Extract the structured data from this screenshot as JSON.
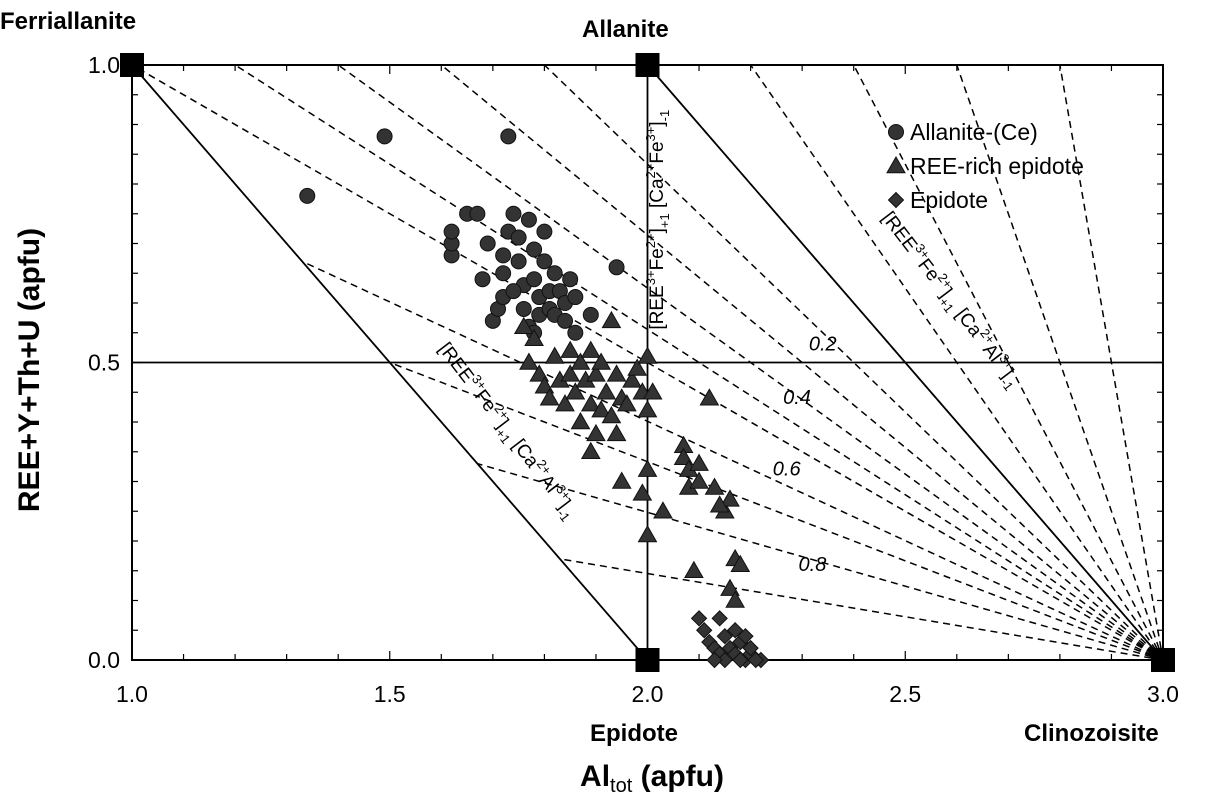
{
  "labels": {
    "ylabel": "REE+Y+Th+U (apfu)",
    "xlabel_main": "Al",
    "xlabel_sub": "tot",
    "xlabel_unit": "(apfu)",
    "vertex_top_left": "Ferriallanite",
    "vertex_top_mid": "Allanite",
    "vertex_bottom_mid": "Epidote",
    "vertex_bottom_right": "Clinozoisite"
  },
  "chart_data": {
    "type": "scatter",
    "xlim": [
      1.0,
      3.0
    ],
    "ylim": [
      0.0,
      1.0
    ],
    "x_ticks": [
      "1.0",
      "1.5",
      "2.0",
      "2.5",
      "3.0"
    ],
    "y_ticks": [
      "0.0",
      "0.5",
      "1.0"
    ],
    "grid": false,
    "legend_position": "top-right",
    "legend": [
      {
        "name": "Allanite-(Ce)",
        "marker": "circle"
      },
      {
        "name": "REE-rich epidote",
        "marker": "triangle"
      },
      {
        "name": "Epidote",
        "marker": "diamond"
      }
    ],
    "end_members": [
      {
        "name": "Ferriallanite",
        "x": 1.0,
        "y": 1.0
      },
      {
        "name": "Allanite",
        "x": 2.0,
        "y": 1.0
      },
      {
        "name": "Epidote",
        "x": 2.0,
        "y": 0.0
      },
      {
        "name": "Clinozoisite",
        "x": 3.0,
        "y": 0.0
      }
    ],
    "reference_lines": [
      {
        "x1": 1.0,
        "y1": 1.0,
        "x2": 2.0,
        "y2": 0.0,
        "style": "solid"
      },
      {
        "x1": 2.0,
        "y1": 1.0,
        "x2": 3.0,
        "y2": 0.0,
        "style": "solid"
      },
      {
        "x1": 2.0,
        "y1": 1.0,
        "x2": 2.0,
        "y2": 0.0,
        "style": "solid"
      },
      {
        "x1": 1.0,
        "y1": 0.5,
        "x2": 3.0,
        "y2": 0.5,
        "style": "solid"
      }
    ],
    "fan_lines": {
      "origin": [
        3.0,
        0.0
      ],
      "targets": [
        [
          1.0,
          1.0
        ],
        [
          1.2,
          1.0
        ],
        [
          1.4,
          1.0
        ],
        [
          1.6,
          1.0
        ],
        [
          1.8,
          1.0
        ],
        [
          2.0,
          1.0
        ],
        [
          2.2,
          1.0
        ],
        [
          2.4,
          1.0
        ],
        [
          2.6,
          1.0
        ],
        [
          2.8,
          1.0
        ],
        [
          1.33,
          0.67
        ],
        [
          1.5,
          0.5
        ],
        [
          1.67,
          0.33
        ],
        [
          1.83,
          0.17
        ]
      ],
      "style": "dashed"
    },
    "line_labels": [
      {
        "text": "0.2",
        "x": 2.34,
        "y": 0.52
      },
      {
        "text": "0.4",
        "x": 2.29,
        "y": 0.43
      },
      {
        "text": "0.6",
        "x": 2.27,
        "y": 0.31
      },
      {
        "text": "0.8",
        "x": 2.32,
        "y": 0.15
      }
    ],
    "exchange_vectors": [
      {
        "pre": "[REE",
        "s1": "3+",
        "mid": "Fe",
        "s2": "2+",
        "mid2": "]",
        "s3": "+1",
        "mid3": " [Ca",
        "s4": "2+",
        "mid4": "Al",
        "s5": "3+",
        "end": "]",
        "s6": "-1"
      },
      {
        "pre": "[REE",
        "s1": "3+",
        "mid": "Fe",
        "s2": "2+",
        "mid2": "]",
        "s3": "+1",
        "mid3": " [Ca",
        "s4": "2+",
        "mid4": "Al",
        "s5": "3+",
        "end": "]",
        "s6": "-1"
      },
      {
        "pre": "[REE",
        "s1": "3+",
        "mid": "Fe",
        "s2": "2+",
        "mid2": "]",
        "s3": "+1",
        "mid3": " [Ca",
        "s4": "2+",
        "mid4": "Fe",
        "s5": "3+",
        "end": "]",
        "s6": "-1"
      }
    ],
    "series": [
      {
        "name": "Allanite-(Ce)",
        "marker": "circle",
        "points": [
          [
            1.34,
            0.78
          ],
          [
            1.49,
            0.88
          ],
          [
            1.73,
            0.88
          ],
          [
            1.62,
            0.68
          ],
          [
            1.62,
            0.7
          ],
          [
            1.62,
            0.72
          ],
          [
            1.65,
            0.75
          ],
          [
            1.67,
            0.75
          ],
          [
            1.69,
            0.7
          ],
          [
            1.68,
            0.64
          ],
          [
            1.7,
            0.57
          ],
          [
            1.71,
            0.59
          ],
          [
            1.72,
            0.61
          ],
          [
            1.72,
            0.65
          ],
          [
            1.72,
            0.68
          ],
          [
            1.73,
            0.72
          ],
          [
            1.74,
            0.75
          ],
          [
            1.75,
            0.71
          ],
          [
            1.75,
            0.67
          ],
          [
            1.76,
            0.63
          ],
          [
            1.76,
            0.59
          ],
          [
            1.77,
            0.56
          ],
          [
            1.78,
            0.69
          ],
          [
            1.78,
            0.64
          ],
          [
            1.79,
            0.61
          ],
          [
            1.79,
            0.58
          ],
          [
            1.8,
            0.72
          ],
          [
            1.8,
            0.67
          ],
          [
            1.81,
            0.62
          ],
          [
            1.81,
            0.59
          ],
          [
            1.82,
            0.65
          ],
          [
            1.82,
            0.58
          ],
          [
            1.83,
            0.62
          ],
          [
            1.84,
            0.6
          ],
          [
            1.84,
            0.57
          ],
          [
            1.85,
            0.64
          ],
          [
            1.86,
            0.61
          ],
          [
            1.86,
            0.55
          ],
          [
            1.89,
            0.58
          ],
          [
            1.94,
            0.66
          ],
          [
            1.77,
            0.74
          ],
          [
            1.74,
            0.62
          ],
          [
            1.78,
            0.55
          ]
        ]
      },
      {
        "name": "REE-rich epidote",
        "marker": "triangle",
        "points": [
          [
            1.76,
            0.56
          ],
          [
            1.77,
            0.5
          ],
          [
            1.78,
            0.54
          ],
          [
            1.79,
            0.48
          ],
          [
            1.8,
            0.46
          ],
          [
            1.81,
            0.44
          ],
          [
            1.82,
            0.51
          ],
          [
            1.83,
            0.47
          ],
          [
            1.84,
            0.43
          ],
          [
            1.85,
            0.52
          ],
          [
            1.85,
            0.48
          ],
          [
            1.86,
            0.45
          ],
          [
            1.87,
            0.4
          ],
          [
            1.87,
            0.5
          ],
          [
            1.88,
            0.47
          ],
          [
            1.89,
            0.52
          ],
          [
            1.89,
            0.43
          ],
          [
            1.89,
            0.35
          ],
          [
            1.9,
            0.38
          ],
          [
            1.9,
            0.48
          ],
          [
            1.91,
            0.42
          ],
          [
            1.91,
            0.5
          ],
          [
            1.92,
            0.45
          ],
          [
            1.93,
            0.41
          ],
          [
            1.93,
            0.57
          ],
          [
            1.94,
            0.48
          ],
          [
            1.94,
            0.38
          ],
          [
            1.95,
            0.44
          ],
          [
            1.95,
            0.3
          ],
          [
            1.96,
            0.43
          ],
          [
            1.97,
            0.47
          ],
          [
            1.98,
            0.49
          ],
          [
            1.99,
            0.45
          ],
          [
            2.0,
            0.51
          ],
          [
            2.0,
            0.42
          ],
          [
            2.0,
            0.32
          ],
          [
            2.0,
            0.21
          ],
          [
            1.99,
            0.28
          ],
          [
            2.01,
            0.45
          ],
          [
            2.03,
            0.25
          ],
          [
            2.07,
            0.36
          ],
          [
            2.07,
            0.34
          ],
          [
            2.08,
            0.32
          ],
          [
            2.08,
            0.29
          ],
          [
            2.1,
            0.33
          ],
          [
            2.13,
            0.29
          ],
          [
            2.15,
            0.25
          ],
          [
            2.16,
            0.27
          ],
          [
            2.12,
            0.44
          ],
          [
            2.17,
            0.17
          ],
          [
            2.18,
            0.16
          ],
          [
            2.16,
            0.12
          ],
          [
            2.17,
            0.1
          ],
          [
            2.09,
            0.15
          ],
          [
            2.1,
            0.3
          ],
          [
            2.14,
            0.26
          ]
        ]
      },
      {
        "name": "Epidote",
        "marker": "diamond",
        "points": [
          [
            2.1,
            0.07
          ],
          [
            2.11,
            0.05
          ],
          [
            2.12,
            0.03
          ],
          [
            2.13,
            0.02
          ],
          [
            2.14,
            0.01
          ],
          [
            2.15,
            0.0
          ],
          [
            2.16,
            0.02
          ],
          [
            2.17,
            0.01
          ],
          [
            2.18,
            0.03
          ],
          [
            2.19,
            0.0
          ],
          [
            2.2,
            0.01
          ],
          [
            2.22,
            0.0
          ],
          [
            2.15,
            0.04
          ],
          [
            2.17,
            0.05
          ],
          [
            2.2,
            0.02
          ],
          [
            2.13,
            0.0
          ],
          [
            2.19,
            0.04
          ],
          [
            2.14,
            0.07
          ],
          [
            2.18,
            0.0
          ],
          [
            2.21,
            0.0
          ]
        ]
      }
    ]
  }
}
